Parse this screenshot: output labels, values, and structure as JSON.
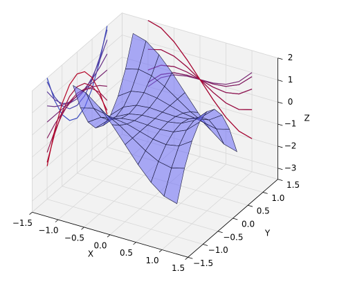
{
  "chart_data": {
    "type": "surface3d",
    "x_label": "X",
    "y_label": "Y",
    "z_label": "Z",
    "x": [
      -1,
      -0.75,
      -0.5,
      -0.25,
      0,
      0.25,
      0.5,
      0.75,
      1
    ],
    "y": [
      -1,
      -0.75,
      -0.5,
      -0.25,
      0,
      0.25,
      0.5,
      0.75,
      1
    ],
    "z": [
      [
        2,
        1.828,
        1.375,
        0.734,
        0,
        -0.734,
        -1.375,
        -1.828,
        -2
      ],
      [
        0.688,
        0.844,
        0.719,
        0.406,
        0,
        -0.406,
        -0.719,
        -0.844,
        -0.688
      ],
      [
        -0.25,
        0.141,
        0.25,
        0.172,
        0,
        -0.172,
        -0.25,
        -0.141,
        0.25
      ],
      [
        -0.813,
        -0.281,
        -0.031,
        0.031,
        0,
        -0.031,
        0.031,
        0.281,
        0.813
      ],
      [
        -1,
        -0.422,
        -0.125,
        -0.016,
        0,
        0.016,
        0.125,
        0.422,
        1
      ],
      [
        -0.813,
        -0.281,
        -0.031,
        0.031,
        0,
        -0.031,
        0.031,
        0.281,
        0.813
      ],
      [
        -0.25,
        0.141,
        0.25,
        0.172,
        0,
        -0.172,
        -0.25,
        -0.141,
        0.25
      ],
      [
        0.688,
        0.844,
        0.719,
        0.406,
        0,
        -0.406,
        -0.719,
        -0.844,
        -0.688
      ],
      [
        2,
        1.828,
        1.375,
        0.734,
        0,
        -0.734,
        -1.375,
        -1.828,
        -2
      ]
    ],
    "color": "#6a6af5",
    "cmap": [
      "#3b4cc0",
      "#b40426"
    ],
    "xlim": [
      -1.5,
      1.5
    ],
    "ylim": [
      -1.5,
      1.5
    ],
    "zlim": [
      -3.5,
      2
    ],
    "xticks": [
      {
        "value": -1.5,
        "label": "−1.5"
      },
      {
        "value": -1,
        "label": "−1.0"
      },
      {
        "value": -0.5,
        "label": "−0.5"
      },
      {
        "value": 0,
        "label": "0.0"
      },
      {
        "value": 0.5,
        "label": "0.5"
      },
      {
        "value": 1,
        "label": "1.0"
      },
      {
        "value": 1.5,
        "label": "1.5"
      }
    ],
    "yticks": [
      {
        "value": -1.5,
        "label": "−1.5"
      },
      {
        "value": -1,
        "label": "−1.0"
      },
      {
        "value": -0.5,
        "label": "−0.5"
      },
      {
        "value": 0,
        "label": "0.0"
      },
      {
        "value": 0.5,
        "label": "0.5"
      },
      {
        "value": 1,
        "label": "1.0"
      },
      {
        "value": 1.5,
        "label": "1.5"
      }
    ],
    "zticks": [
      {
        "value": -3,
        "label": "−3"
      },
      {
        "value": -2,
        "label": "−2"
      },
      {
        "value": -1,
        "label": "−1"
      },
      0,
      1,
      2
    ],
    "grid": true
  }
}
